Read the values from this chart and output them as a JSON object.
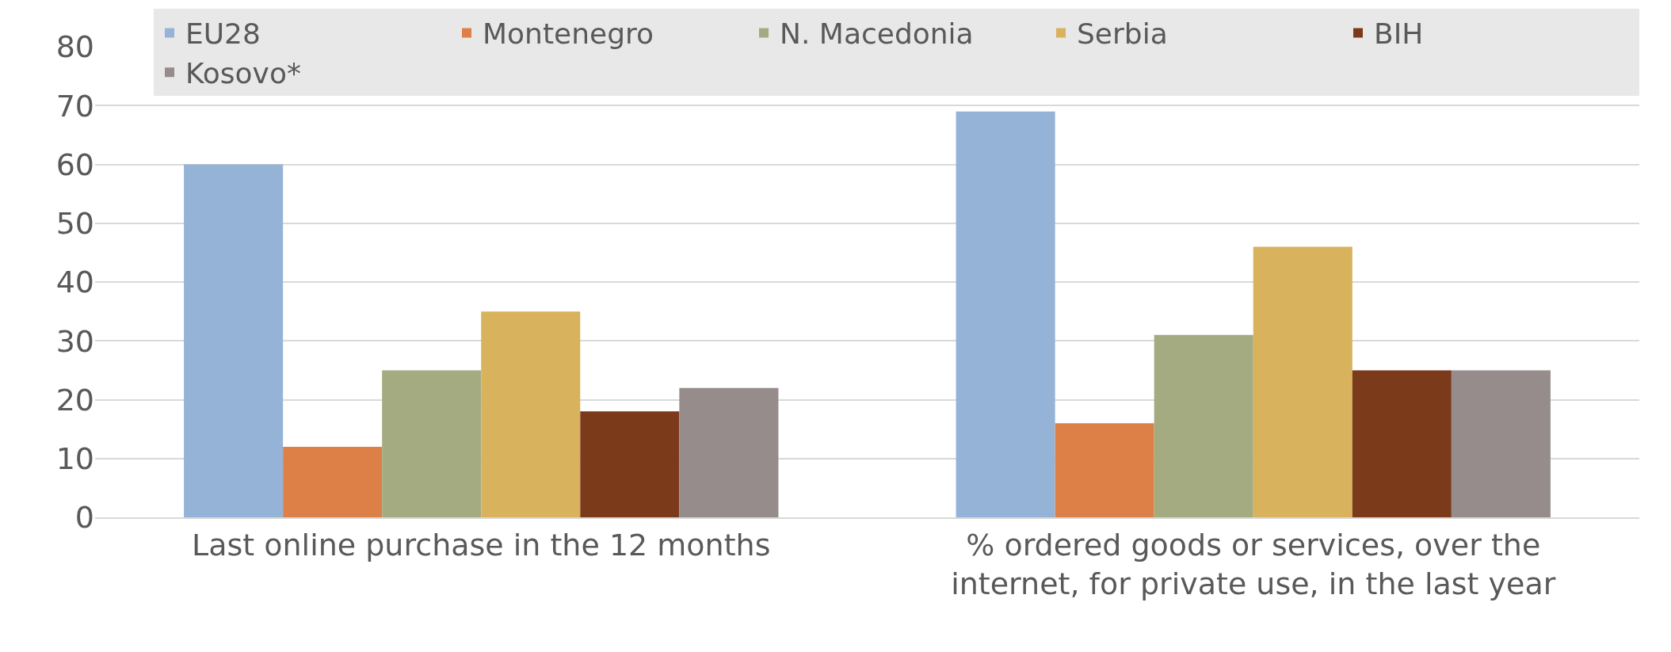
{
  "chart_data": {
    "type": "bar",
    "categories": [
      "Last online purchase in the 12 months",
      "% ordered goods or services, over the internet, for private use, in the last year"
    ],
    "series": [
      {
        "name": "EU28",
        "color": "#95b3d7",
        "values": [
          60,
          69
        ]
      },
      {
        "name": "Montenegro",
        "color": "#dd8047",
        "values": [
          12,
          16
        ]
      },
      {
        "name": "N. Macedonia",
        "color": "#a5ab81",
        "values": [
          25,
          31
        ]
      },
      {
        "name": "Serbia",
        "color": "#d8b25c",
        "values": [
          35,
          46
        ]
      },
      {
        "name": "BIH",
        "color": "#7b3a1a",
        "values": [
          18,
          25
        ]
      },
      {
        "name": "Kosovo*",
        "color": "#968c8c",
        "values": [
          22,
          25
        ]
      }
    ],
    "ylim": [
      0,
      80
    ],
    "yticks": [
      0,
      10,
      20,
      30,
      40,
      50,
      60,
      70,
      80
    ],
    "grid": "y",
    "legend": "top right"
  }
}
